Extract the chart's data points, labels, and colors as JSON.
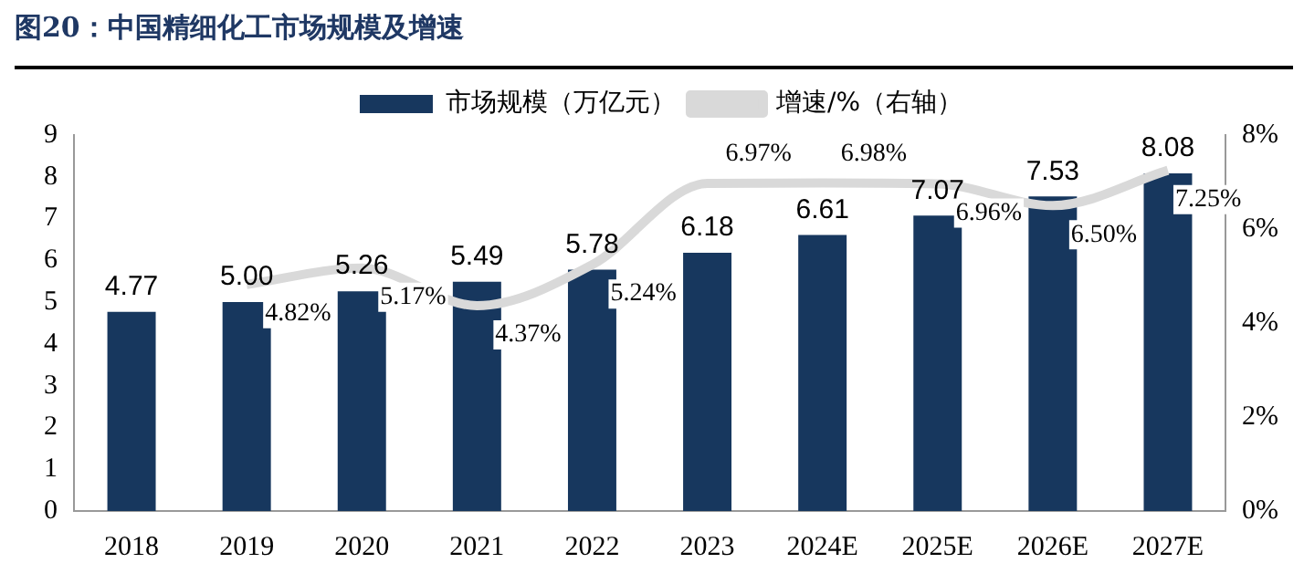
{
  "chart_data": {
    "type": "bar",
    "title": "图20：中国精细化工市场规模及增速",
    "categories": [
      "2018",
      "2019",
      "2020",
      "2021",
      "2022",
      "2023",
      "2024E",
      "2025E",
      "2026E",
      "2027E"
    ],
    "series": [
      {
        "name": "市场规模（万亿元）",
        "color": "#17375e",
        "values": [
          4.77,
          5.0,
          5.26,
          5.49,
          5.78,
          6.18,
          6.61,
          7.07,
          7.53,
          8.08
        ],
        "value_labels": [
          "4.77",
          "5.00",
          "5.26",
          "5.49",
          "5.78",
          "6.18",
          "6.61",
          "7.07",
          "7.53",
          "8.08"
        ]
      },
      {
        "name": "增速/%（右轴）",
        "type": "line",
        "axis": "y2",
        "color": "#d9d9d9",
        "values": [
          null,
          4.82,
          5.17,
          4.37,
          5.24,
          6.97,
          6.98,
          6.96,
          6.5,
          7.25
        ],
        "value_labels": [
          null,
          "4.82%",
          "5.17%",
          "4.37%",
          "5.24%",
          "6.97%",
          "6.98%",
          "6.96%",
          "6.50%",
          "7.25%"
        ]
      }
    ],
    "ylim": [
      0,
      9
    ],
    "yticks": [
      0,
      1,
      2,
      3,
      4,
      5,
      6,
      7,
      8,
      9
    ],
    "y2lim": [
      0,
      8
    ],
    "y2ticks": [
      {
        "value": 0,
        "label": "0%"
      },
      {
        "value": 2,
        "label": "2%"
      },
      {
        "value": 4,
        "label": "4%"
      },
      {
        "value": 6,
        "label": "6%"
      },
      {
        "value": 8,
        "label": "8%"
      }
    ],
    "grid": false,
    "legend": "top",
    "marker": "none"
  }
}
